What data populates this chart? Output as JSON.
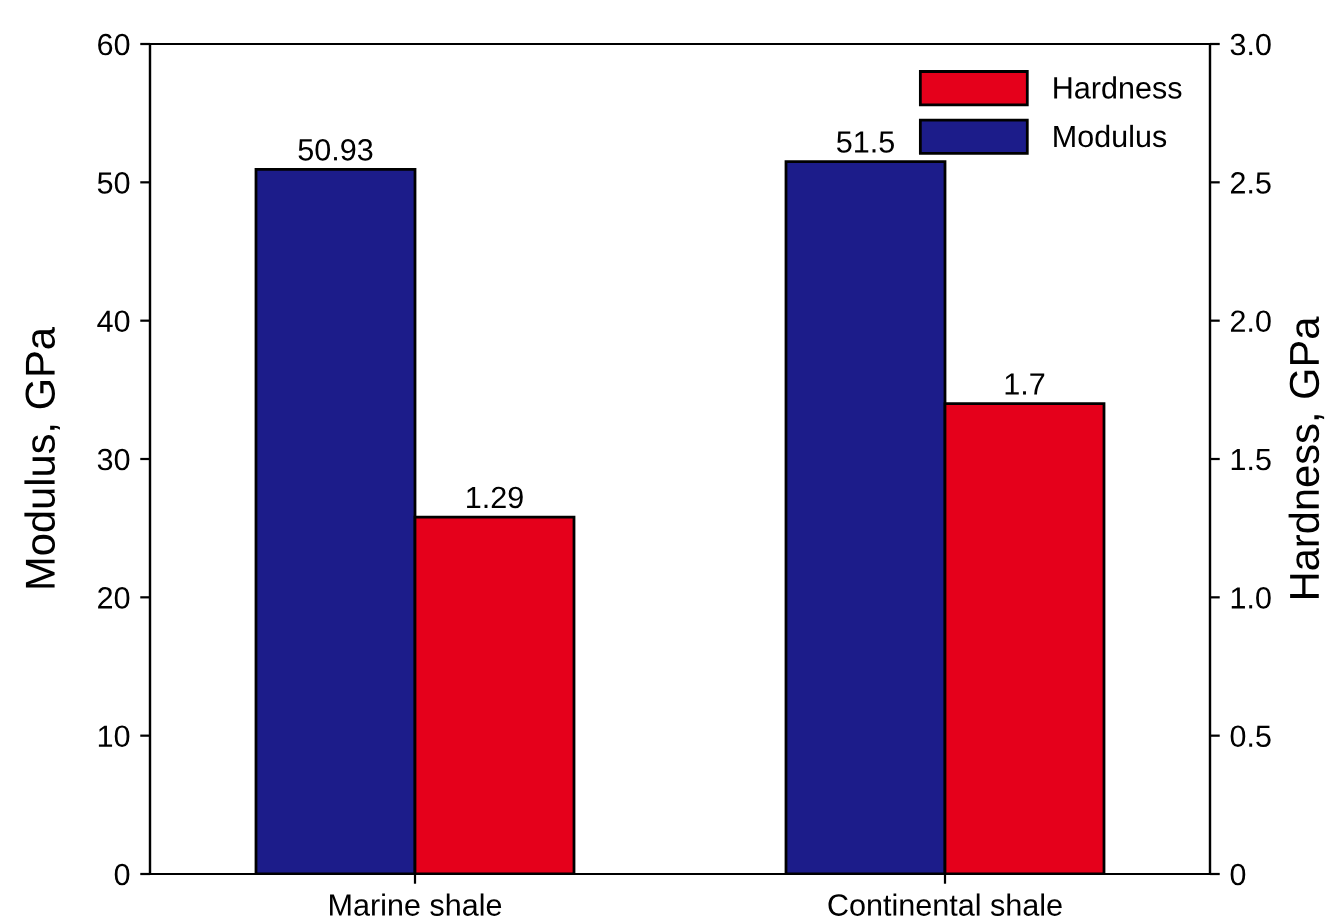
{
  "chart_data": {
    "type": "bar",
    "categories": [
      "Marine shale",
      "Continental shale"
    ],
    "series": [
      {
        "name": "Modulus",
        "color": "#1c1c8a",
        "values": [
          50.93,
          51.5
        ]
      },
      {
        "name": "Hardness",
        "color": "#e5001b",
        "values": [
          1.29,
          1.7
        ],
        "axis": "y2"
      }
    ],
    "ylabel": "Modulus, GPa",
    "y2label": "Hardness, GPa",
    "ylim": [
      0,
      60
    ],
    "yticks": [
      0,
      10,
      20,
      30,
      40,
      50,
      60
    ],
    "y2lim": [
      0,
      3.0
    ],
    "y2ticks": [
      {
        "value": 0,
        "label": "0"
      },
      {
        "value": 0.5,
        "label": "0.5"
      },
      {
        "value": 1.0,
        "label": "1.0"
      },
      {
        "value": 1.5,
        "label": "1.5"
      },
      {
        "value": 2.0,
        "label": "2.0"
      },
      {
        "value": 2.5,
        "label": "2.5"
      },
      {
        "value": 3.0,
        "label": "3.0"
      }
    ],
    "data_labels": true,
    "legend": "top right",
    "grid": false
  }
}
